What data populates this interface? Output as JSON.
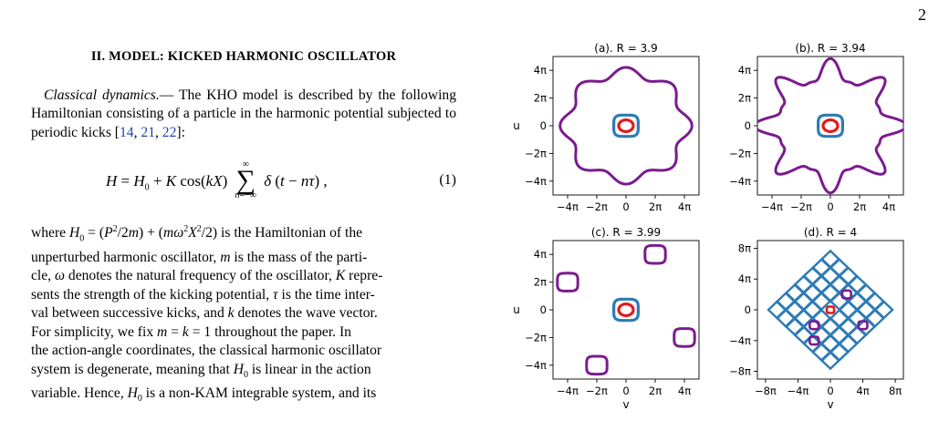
{
  "page_number": "2",
  "section_heading": "II.   MODEL: KICKED HARMONIC OSCILLATOR",
  "para1_italic": "Classical dynamics.",
  "para1_rest": "— The KHO model is described by the following Hamiltonian consisting of a particle in the harmonic potential subjected to periodic kicks [",
  "citations1": [
    "14",
    "21",
    "22"
  ],
  "para1_end": "]:",
  "equation_number": "(1)",
  "para2_html_lines": [
    "where H₀ = (P²/2m) + (mω²X²/2) is the Hamiltonian of the",
    "unperturbed harmonic oscillator, m is the mass of the parti-",
    "cle, ω denotes the natural frequency of the oscillator, K repre-",
    "sents the strength of the kicking potential, τ is the time inter-",
    "val between successive kicks, and k denotes the wave vector.",
    "For simplicity, we fix m = k = 1 throughout the paper. In",
    "the action-angle coordinates, the classical harmonic oscillator",
    "system is degenerate, meaning that H₀ is linear in the action",
    "variable. Hence, H₀ is a non-KAM integrable system, and its"
  ],
  "colors": {
    "outer": "#7b1b8f",
    "middle": "#2c7bb6",
    "inner": "#e31a1c"
  },
  "chart_data": [
    {
      "type": "scatter",
      "title": "(a). R = 3.9",
      "xlabel": "",
      "ylabel": "u",
      "xticks": [
        "−4π",
        "−2π",
        "0",
        "2π",
        "4π"
      ],
      "yticks": [
        "4π",
        "2π",
        "0",
        "−2π",
        "−4π"
      ],
      "xlim": [
        "-5π",
        "5π"
      ],
      "ylim": [
        "-5π",
        "5π"
      ],
      "series": [
        {
          "description": "outer wavy closed orbit",
          "radius": "≈4π"
        },
        {
          "description": "middle square-like orbit",
          "radius": "≈0.6π"
        },
        {
          "description": "inner orbit",
          "radius": "≈0.35π"
        }
      ]
    },
    {
      "type": "scatter",
      "title": "(b). R = 3.94",
      "xlabel": "",
      "ylabel": "",
      "xticks": [
        "−4π",
        "−2π",
        "0",
        "2π",
        "4π"
      ],
      "yticks": [
        "4π",
        "2π",
        "0",
        "−2π",
        "−4π"
      ],
      "xlim": [
        "-5π",
        "5π"
      ],
      "ylim": [
        "-5π",
        "5π"
      ],
      "series": [
        {
          "description": "outer strongly wavy closed orbit",
          "radius": "≈4π"
        },
        {
          "description": "middle square-like orbit",
          "radius": "≈0.6π"
        },
        {
          "description": "inner orbit",
          "radius": "≈0.35π"
        }
      ]
    },
    {
      "type": "scatter",
      "title": "(c). R = 3.99",
      "xlabel": "v",
      "ylabel": "u",
      "xticks": [
        "−4π",
        "−2π",
        "0",
        "2π",
        "4π"
      ],
      "yticks": [
        "4π",
        "2π",
        "0",
        "−2π",
        "−4π"
      ],
      "xlim": [
        "-5π",
        "5π"
      ],
      "ylim": [
        "-5π",
        "5π"
      ],
      "series": [
        {
          "description": "four small islands",
          "centers": [
            [
              2,
              4
            ],
            [
              -4,
              2
            ],
            [
              4,
              -2
            ],
            [
              -2,
              -4
            ]
          ],
          "units": "π"
        },
        {
          "description": "middle square-like orbit",
          "radius": "≈0.6π"
        },
        {
          "description": "inner orbit",
          "radius": "≈0.35π"
        }
      ]
    },
    {
      "type": "scatter",
      "title": "(d). R = 4",
      "xlabel": "v",
      "ylabel": "",
      "xticks": [
        "−8π",
        "−4π",
        "0",
        "4π",
        "8π"
      ],
      "yticks": [
        "8π",
        "4π",
        "0",
        "−4π",
        "−8π"
      ],
      "xlim": [
        "-9π",
        "9π"
      ],
      "ylim": [
        "-9π",
        "9π"
      ],
      "series": [
        {
          "description": "stochastic web (diamond lattice)",
          "extent": "≈8π"
        },
        {
          "description": "four small islands",
          "centers": [
            [
              2,
              2
            ],
            [
              -2,
              -2
            ],
            [
              4,
              -2
            ],
            [
              -2,
              -4
            ]
          ],
          "units": "π"
        },
        {
          "description": "inner orbit",
          "radius": "≈0.3π"
        }
      ]
    }
  ]
}
